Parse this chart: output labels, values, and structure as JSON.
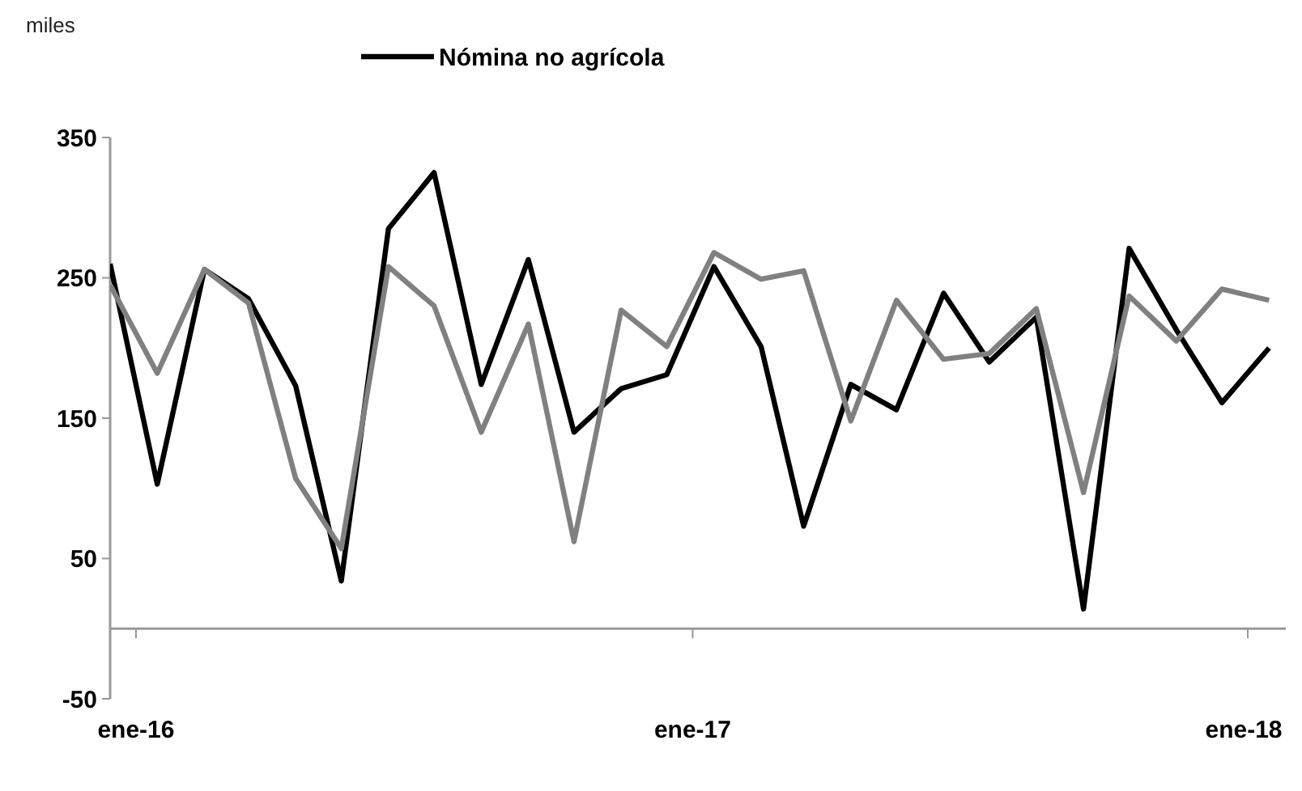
{
  "chart_data": {
    "type": "line",
    "ylabel": "miles",
    "x": [
      "2015-12-15",
      "2016-01-15",
      "2016-02-15",
      "2016-03-15",
      "2016-04-15",
      "2016-05-15",
      "2016-06-15",
      "2016-07-15",
      "2016-08-15",
      "2016-09-15",
      "2016-10-15",
      "2016-11-15",
      "2016-12-15",
      "2017-01-15",
      "2017-02-15",
      "2017-03-15",
      "2017-04-15",
      "2017-05-15",
      "2017-06-15",
      "2017-07-15",
      "2017-08-15",
      "2017-09-15",
      "2017-10-15",
      "2017-11-15",
      "2017-12-15",
      "2018-01-15"
    ],
    "series": [
      {
        "name": "Nómina no agrícola",
        "color": "#000000",
        "values": [
          260,
          103,
          256,
          235,
          173,
          34,
          285,
          325,
          174,
          263,
          140,
          171,
          181,
          258,
          201,
          73,
          174,
          156,
          239,
          190,
          222,
          14,
          271,
          213,
          161,
          200
        ]
      },
      {
        "color": "#808080",
        "values": [
          245,
          182,
          256,
          232,
          107,
          57,
          258,
          230,
          140,
          217,
          62,
          227,
          201,
          268,
          249,
          255,
          148,
          234,
          192,
          196,
          228,
          97,
          237,
          205,
          242,
          234
        ]
      }
    ],
    "xlim": [
      "2015-12-15",
      "2018-01-26"
    ],
    "xticks": [
      {
        "value": "2016-01-01",
        "label": "ene-16"
      },
      {
        "value": "2017-01-01",
        "label": "ene-17"
      },
      {
        "value": "2018-01-01",
        "label": "ene-18"
      }
    ],
    "ylim": [
      -50,
      350
    ],
    "yticks": [
      -50,
      50,
      150,
      250,
      350
    ],
    "grid": false,
    "legend": "top",
    "marker": "none",
    "line_style": "solid"
  }
}
